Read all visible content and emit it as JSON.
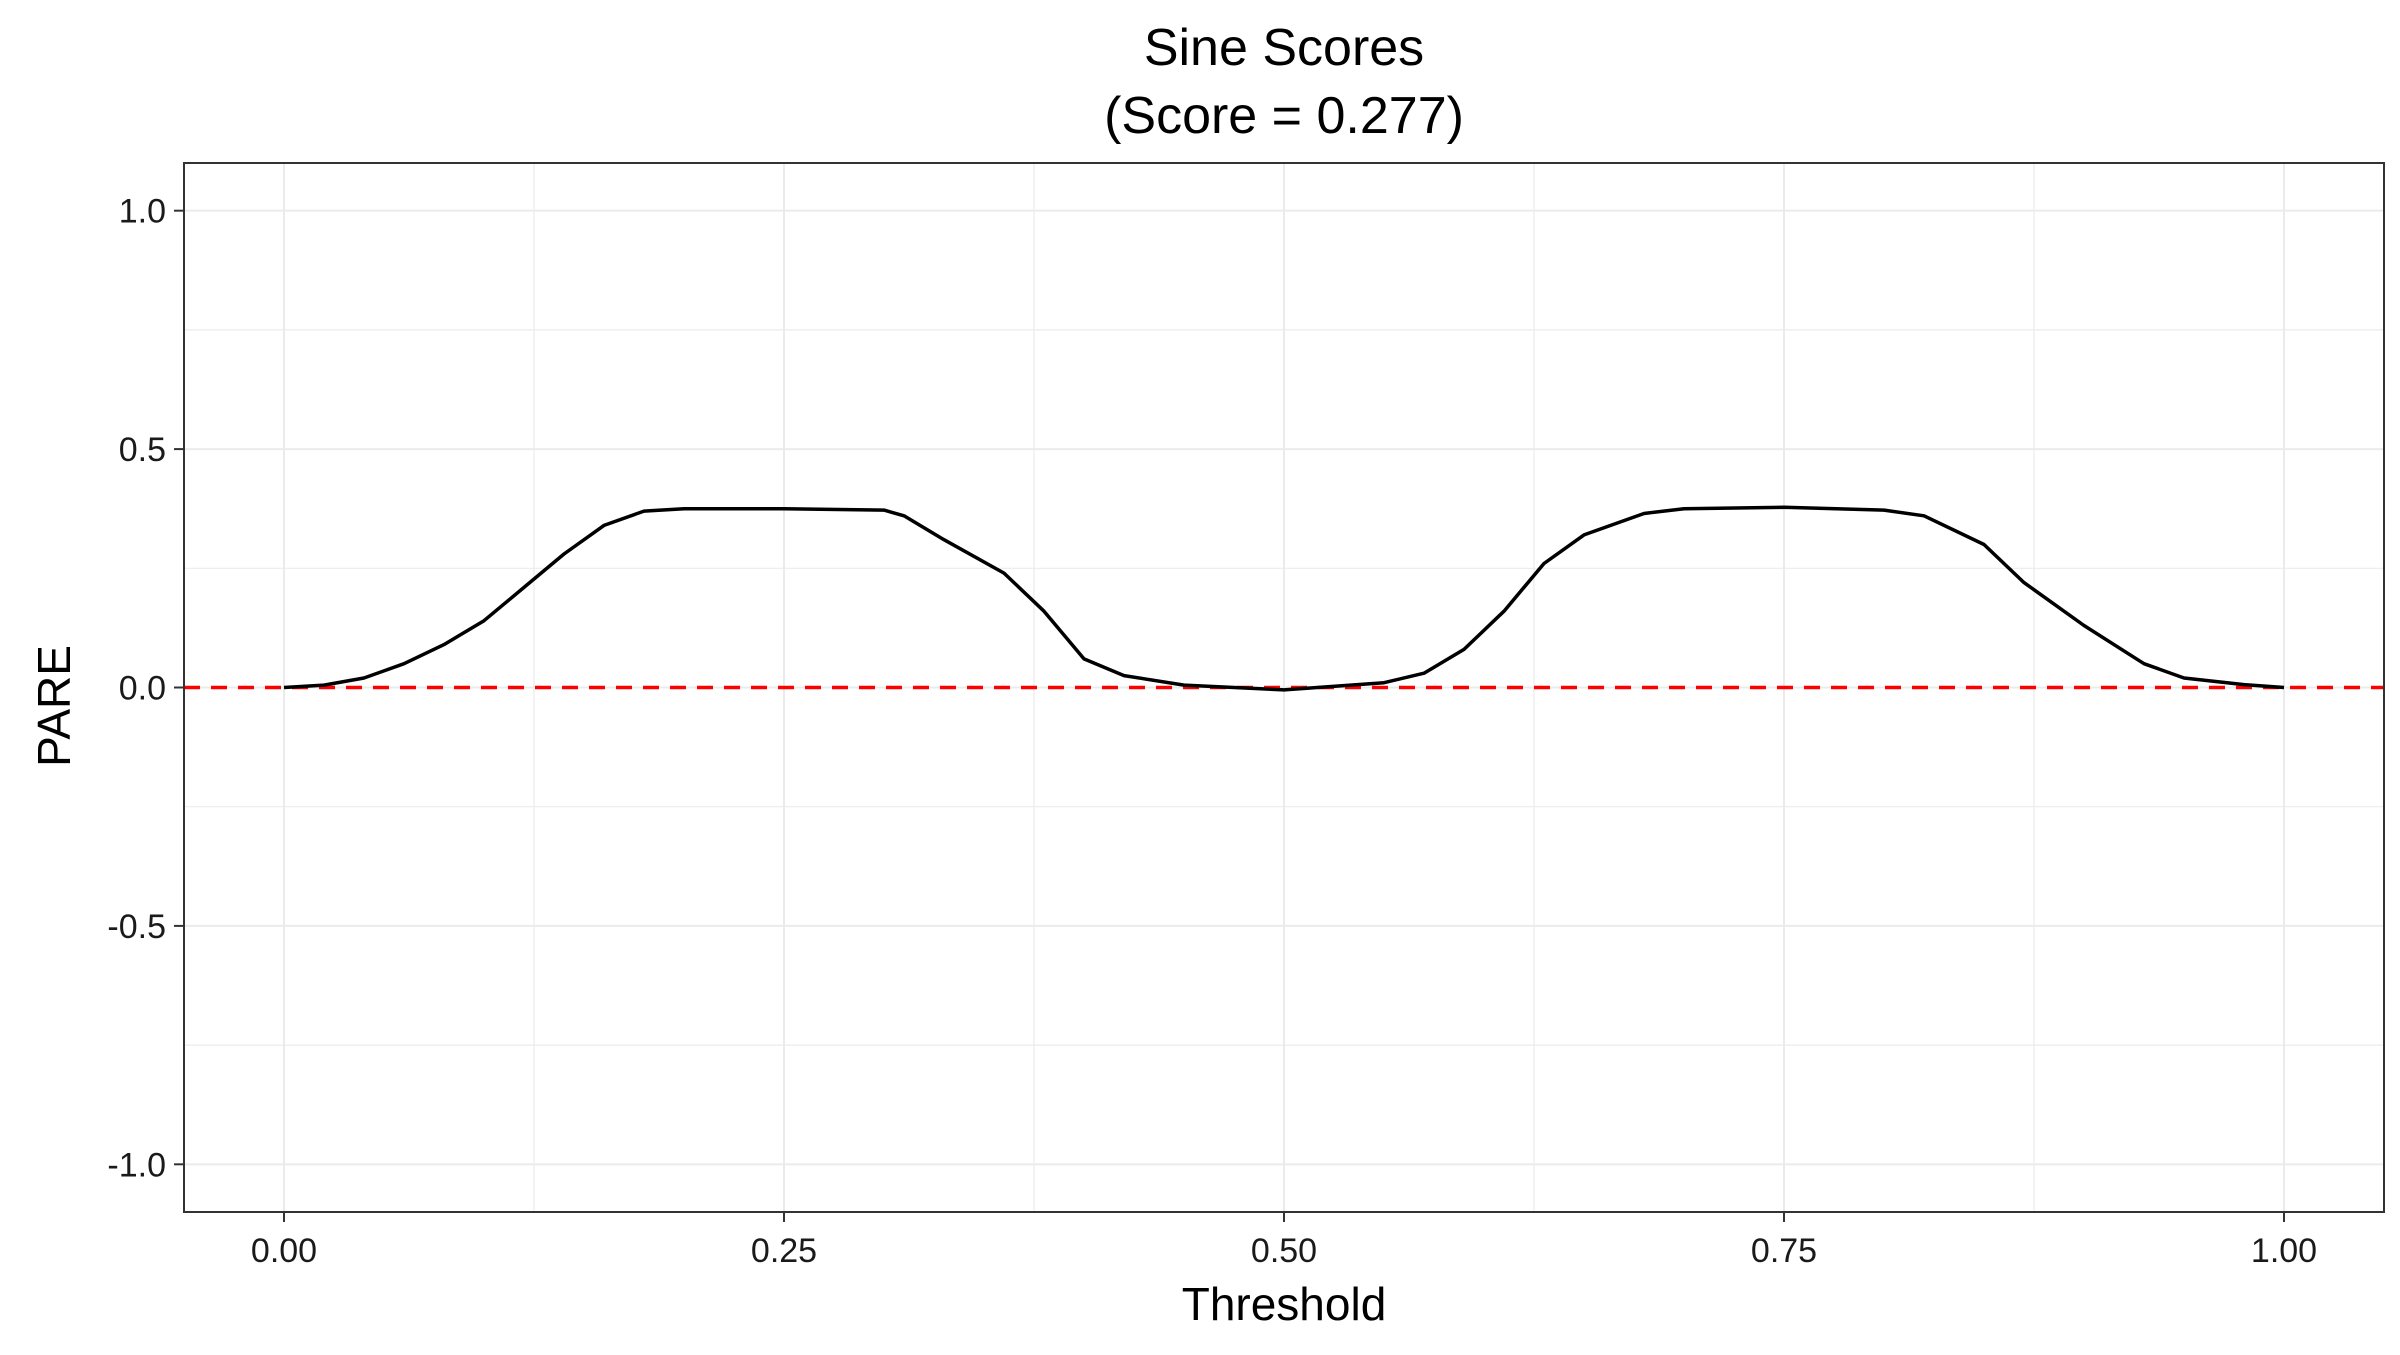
{
  "chart_data": {
    "type": "line",
    "title": "Sine Scores",
    "subtitle": "(Score = 0.277)",
    "xlabel": "Threshold",
    "ylabel": "PARE",
    "xlim": [
      -0.05,
      1.05
    ],
    "ylim": [
      -1.1,
      1.1
    ],
    "x_ticks": [
      0,
      0.25,
      0.5,
      0.75,
      1.0
    ],
    "x_tick_labels": [
      "0.00",
      "0.25",
      "0.50",
      "0.75",
      "1.00"
    ],
    "y_ticks": [
      1.0,
      0.5,
      0.0,
      -0.5,
      -1.0
    ],
    "y_tick_labels": [
      "1.0",
      "0.5",
      "0.0",
      "-0.5",
      "-1.0"
    ],
    "grid": true,
    "colors": {
      "line": "#000000",
      "reference": "#ff0000",
      "grid": "#ebebeb",
      "border": "#333333"
    },
    "reference_line": {
      "y": 0,
      "style": "dashed"
    },
    "series": [
      {
        "x": [
          0.0,
          0.02,
          0.04,
          0.06,
          0.08,
          0.1,
          0.12,
          0.14,
          0.16,
          0.18,
          0.2,
          0.25,
          0.3,
          0.31,
          0.33,
          0.36,
          0.38,
          0.4,
          0.42,
          0.45,
          0.5,
          0.55,
          0.57,
          0.59,
          0.61,
          0.63,
          0.65,
          0.68,
          0.7,
          0.75,
          0.8,
          0.82,
          0.85,
          0.87,
          0.9,
          0.93,
          0.95,
          0.98,
          1.0
        ],
        "y": [
          0.0,
          0.005,
          0.02,
          0.05,
          0.09,
          0.14,
          0.21,
          0.28,
          0.34,
          0.37,
          0.375,
          0.375,
          0.372,
          0.36,
          0.31,
          0.24,
          0.16,
          0.06,
          0.025,
          0.005,
          -0.005,
          0.01,
          0.03,
          0.08,
          0.16,
          0.26,
          0.32,
          0.365,
          0.375,
          0.378,
          0.372,
          0.36,
          0.3,
          0.22,
          0.13,
          0.05,
          0.02,
          0.006,
          0.0
        ]
      }
    ]
  }
}
